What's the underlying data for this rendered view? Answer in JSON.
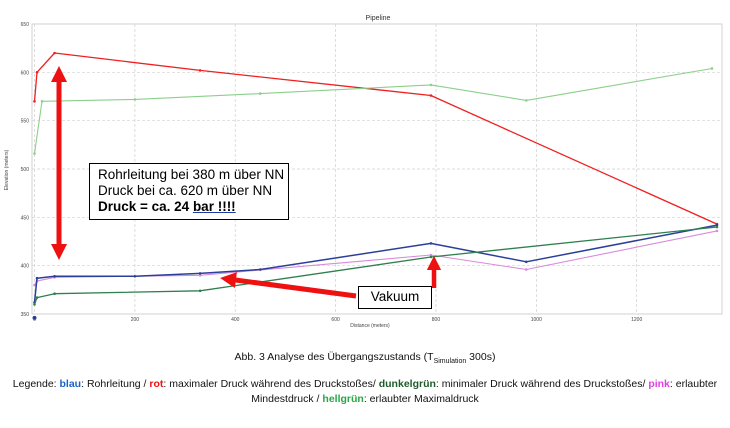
{
  "chart_data": {
    "type": "line",
    "title": "Pipeline",
    "xlabel": "Distance (meters)",
    "ylabel": "Elevation (meters)",
    "xlim": [
      -5,
      1370
    ],
    "ylim": [
      350,
      650
    ],
    "x_ticks": [
      0,
      200,
      400,
      600,
      800,
      1000,
      1200
    ],
    "x_tick_labels": [
      "0",
      "200",
      "400",
      "600",
      "800",
      "1000",
      "1200"
    ],
    "y_ticks": [
      350,
      400,
      450,
      500,
      550,
      600,
      650
    ],
    "y_tick_labels": [
      "350",
      "400",
      "450",
      "500",
      "550",
      "600",
      "650"
    ],
    "grid": true,
    "series": [
      {
        "color": "#ef2020",
        "x": [
          0,
          5,
          40,
          330,
          790,
          1360
        ],
        "y": [
          570,
          600,
          620,
          602,
          576,
          443
        ]
      },
      {
        "color": "#8ccf8c",
        "x": [
          0,
          15,
          200,
          450,
          790,
          980,
          1350
        ],
        "y": [
          516,
          570,
          572,
          578,
          587,
          571,
          604
        ]
      },
      {
        "color": "#d98bd9",
        "x": [
          0,
          5,
          40,
          330,
          790,
          980,
          1360
        ],
        "y": [
          380,
          384,
          388,
          390,
          411,
          396,
          436
        ]
      },
      {
        "color": "#2b3f9a",
        "x": [
          0,
          5,
          40,
          200,
          330,
          450,
          790,
          980,
          1360
        ],
        "y": [
          362,
          387,
          389,
          389,
          392,
          396,
          423,
          404,
          442
        ]
      },
      {
        "color": "#2f7f4f",
        "x": [
          0,
          5,
          40,
          330,
          790,
          1360
        ],
        "y": [
          360,
          367,
          371,
          374,
          409,
          440
        ]
      }
    ],
    "annotations": {
      "start_point": {
        "x": 0,
        "y": 346
      },
      "callout_lines": [
        "Rohrleitung bei 380 m über NN",
        "Druck bei ca. 620 m über NN"
      ],
      "callout_bold_prefix": "Druck = ca. 24 ",
      "callout_bold_underlined": "bar !!!!",
      "vacuum_label": "Vakuum",
      "arrow_color": "#ee1111"
    }
  },
  "caption": {
    "line1_main": "Abb. 3 Analyse des Übergangszustands (T",
    "line1_sub": "Simulation",
    "line1_end": " 300s)",
    "legend_prefix": "Legende: ",
    "blue_word": "blau",
    "blue_text": ": Rohrleitung / ",
    "red_word": "rot",
    "red_text": ": maximaler Druck während des Druckstoßes/ ",
    "dgreen_word": "dunkelgrün",
    "dgreen_text": ": minimaler Druck während des Druckstoßes/ ",
    "pink_word": "pink",
    "pink_text": ": erlaubter Mindestdruck / ",
    "lgreen_word": "hellgrün",
    "lgreen_text": ": erlaubter Maximaldruck"
  }
}
